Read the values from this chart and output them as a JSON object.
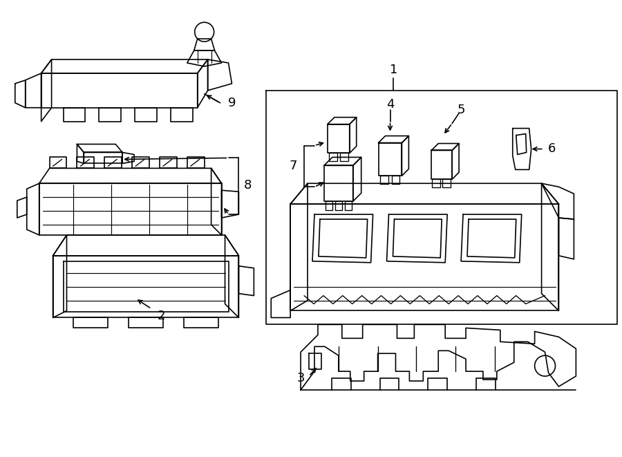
{
  "bg_color": "#ffffff",
  "line_color": "#000000",
  "lw": 1.2,
  "fig_width": 9.0,
  "fig_height": 6.61,
  "dpi": 100
}
